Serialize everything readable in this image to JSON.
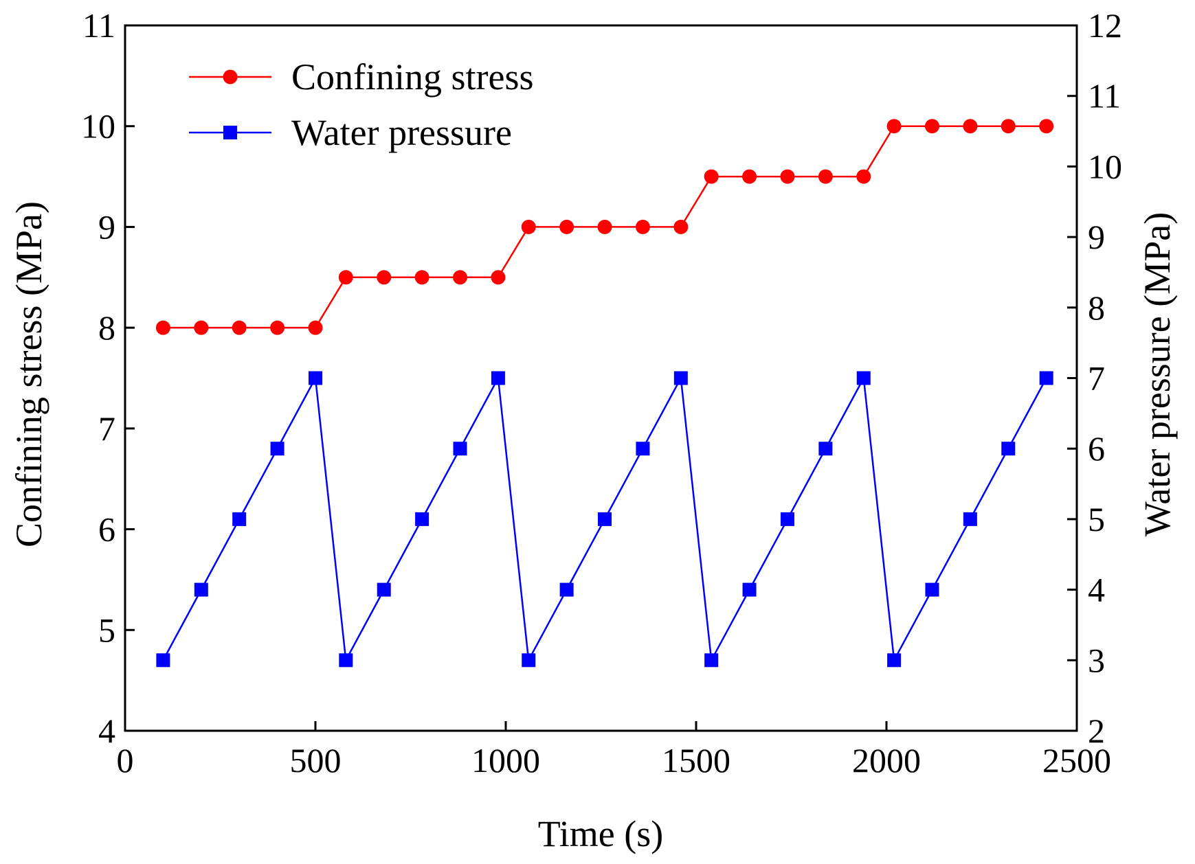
{
  "chart_data": {
    "type": "line",
    "title": "",
    "xlabel": "Time (s)",
    "ylabel_left": "Confining stress (MPa)",
    "ylabel_right": "Water pressure (MPa)",
    "xlim": [
      0,
      2500
    ],
    "ylim_left": [
      4,
      11
    ],
    "ylim_right": [
      2,
      12
    ],
    "x_ticks": [
      "0",
      "500",
      "1000",
      "1500",
      "2000",
      "2500"
    ],
    "y_left_ticks": [
      "4",
      "5",
      "6",
      "7",
      "8",
      "9",
      "10",
      "11"
    ],
    "y_right_ticks": [
      "2",
      "3",
      "4",
      "5",
      "6",
      "7",
      "8",
      "9",
      "10",
      "11",
      "12"
    ],
    "grid": false,
    "legend_position": "top-left",
    "series": [
      {
        "name": "Confining stress",
        "axis": "left",
        "color": "#ff0000",
        "marker": "circle",
        "points": [
          [
            100,
            8
          ],
          [
            200,
            8
          ],
          [
            300,
            8
          ],
          [
            400,
            8
          ],
          [
            500,
            8
          ],
          [
            580,
            8.5
          ],
          [
            680,
            8.5
          ],
          [
            780,
            8.5
          ],
          [
            880,
            8.5
          ],
          [
            980,
            8.5
          ],
          [
            1060,
            9
          ],
          [
            1160,
            9
          ],
          [
            1260,
            9
          ],
          [
            1360,
            9
          ],
          [
            1460,
            9
          ],
          [
            1540,
            9.5
          ],
          [
            1640,
            9.5
          ],
          [
            1740,
            9.5
          ],
          [
            1840,
            9.5
          ],
          [
            1940,
            9.5
          ],
          [
            2020,
            10
          ],
          [
            2120,
            10
          ],
          [
            2220,
            10
          ],
          [
            2320,
            10
          ],
          [
            2420,
            10
          ]
        ]
      },
      {
        "name": "Water pressure",
        "axis": "right",
        "color": "#0000ff",
        "marker": "square",
        "points": [
          [
            100,
            3
          ],
          [
            200,
            4
          ],
          [
            300,
            5
          ],
          [
            400,
            6
          ],
          [
            500,
            7
          ],
          [
            580,
            3
          ],
          [
            680,
            4
          ],
          [
            780,
            5
          ],
          [
            880,
            6
          ],
          [
            980,
            7
          ],
          [
            1060,
            3
          ],
          [
            1160,
            4
          ],
          [
            1260,
            5
          ],
          [
            1360,
            6
          ],
          [
            1460,
            7
          ],
          [
            1540,
            3
          ],
          [
            1640,
            4
          ],
          [
            1740,
            5
          ],
          [
            1840,
            6
          ],
          [
            1940,
            7
          ],
          [
            2020,
            3
          ],
          [
            2120,
            4
          ],
          [
            2220,
            5
          ],
          [
            2320,
            6
          ],
          [
            2420,
            7
          ]
        ]
      }
    ]
  }
}
